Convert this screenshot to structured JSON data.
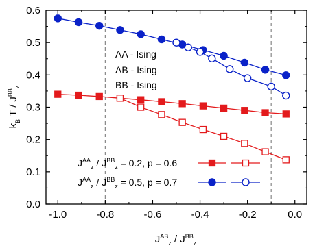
{
  "chart_data": {
    "type": "line",
    "xlim": [
      -1.05,
      0.05
    ],
    "ylim": [
      0.0,
      0.6
    ],
    "xticks": [
      -1.0,
      -0.8,
      -0.6,
      -0.4,
      -0.2,
      0.0
    ],
    "xtick_labels": [
      "-1.0",
      "-0.8",
      "-0.6",
      "-0.4",
      "-0.2",
      "0.0"
    ],
    "yticks": [
      0.0,
      0.1,
      0.2,
      0.3,
      0.4,
      0.5,
      0.6
    ],
    "ytick_labels": [
      "0.0",
      "0.1",
      "0.2",
      "0.3",
      "0.4",
      "0.5",
      "0.6"
    ],
    "xlabel": {
      "pre": "J",
      "sub": "z",
      "sup": "AB",
      "mid": " / J",
      "sub2": "z",
      "sup2": "BB"
    },
    "ylabel": {
      "pre": "k",
      "sub": "B",
      "mid": " T / J",
      "sub2": "z",
      "sup2": "BB"
    },
    "grid": false,
    "vlines": [
      -0.8,
      -0.1
    ],
    "annotations": [
      "AA - Ising",
      "AB - Ising",
      "BB - Ising"
    ],
    "legend": [
      {
        "pre": "J",
        "sub": "z",
        "sup": "AA",
        "mid": " / J",
        "sub2": "z",
        "sup2": "BB",
        "post": " = 0.2, p = 0.6",
        "color": "#e31a1c",
        "marker": "square"
      },
      {
        "pre": "J",
        "sub": "z",
        "sup": "AA",
        "mid": " / J",
        "sub2": "z",
        "sup2": "BB",
        "post": " = 0.5, p = 0.7",
        "color": "#0a22c8",
        "marker": "circle"
      }
    ],
    "series": [
      {
        "color": "#e31a1c",
        "marker": "square",
        "filled": true,
        "x": [
          -1.0,
          -0.9125,
          -0.825,
          -0.7375,
          -0.65,
          -0.5625,
          -0.475,
          -0.3875,
          -0.3,
          -0.2125,
          -0.125,
          -0.0375
        ],
        "y": [
          0.34,
          0.337,
          0.333,
          0.328,
          0.323,
          0.317,
          0.311,
          0.304,
          0.297,
          0.29,
          0.283,
          0.279
        ]
      },
      {
        "color": "#e31a1c",
        "marker": "square",
        "filled": false,
        "x": [
          -0.7375,
          -0.65,
          -0.5625,
          -0.475,
          -0.3875,
          -0.3,
          -0.2125,
          -0.125,
          -0.0375
        ],
        "y": [
          0.328,
          0.3,
          0.277,
          0.253,
          0.231,
          0.21,
          0.188,
          0.162,
          0.137
        ]
      },
      {
        "color": "#0a22c8",
        "marker": "circle",
        "filled": true,
        "x": [
          -1.0,
          -0.9125,
          -0.825,
          -0.7375,
          -0.65,
          -0.5625,
          -0.475,
          -0.3875,
          -0.3,
          -0.2125,
          -0.125,
          -0.0375
        ],
        "y": [
          0.575,
          0.563,
          0.552,
          0.539,
          0.526,
          0.51,
          0.494,
          0.477,
          0.459,
          0.438,
          0.416,
          0.399
        ]
      },
      {
        "color": "#0a22c8",
        "marker": "circle",
        "filled": false,
        "x": [
          -0.5,
          -0.45,
          -0.4,
          -0.35,
          -0.275,
          -0.2,
          -0.1,
          -0.0375
        ],
        "y": [
          0.5,
          0.485,
          0.471,
          0.451,
          0.418,
          0.39,
          0.364,
          0.336
        ]
      }
    ]
  }
}
